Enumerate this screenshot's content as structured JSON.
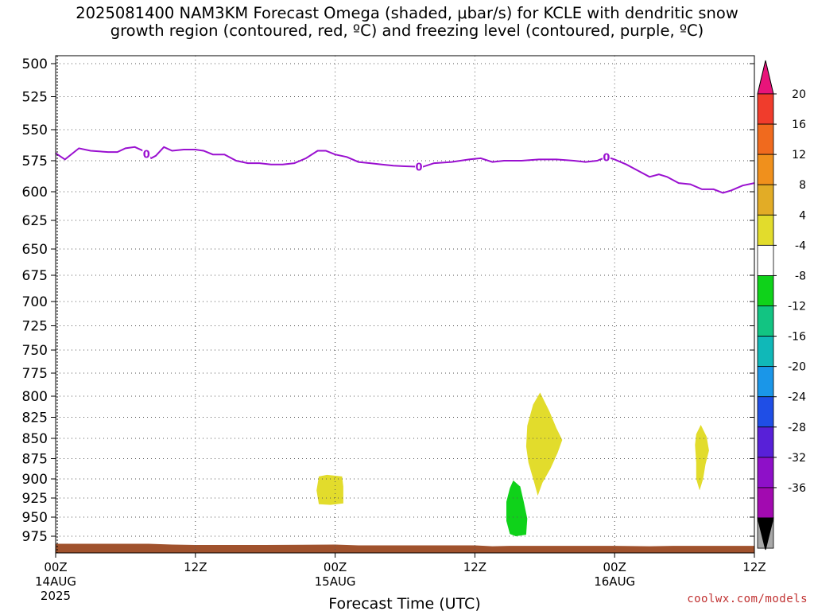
{
  "title": {
    "line1": "2025081400 NAM3KM Forecast Omega (shaded, μbar/s) for KCLE with dendritic snow",
    "line2": "growth region (contoured, red, ºC) and freezing level (contoured, purple, ºC)"
  },
  "credit": "coolwx.com/models",
  "chart_data": {
    "type": "contour",
    "xlabel": "Forecast Time (UTC)",
    "ylabel": "",
    "x_unit": "hours from 2025-08-14 00Z",
    "xlim": [
      0,
      60
    ],
    "ylim_hPa": [
      490,
      995
    ],
    "y_reversed": true,
    "grid": true,
    "x_ticks": [
      {
        "hour": 0,
        "label": "00Z",
        "date": "14AUG",
        "year": "2025"
      },
      {
        "hour": 12,
        "label": "12Z"
      },
      {
        "hour": 24,
        "label": "00Z",
        "date": "15AUG"
      },
      {
        "hour": 36,
        "label": "12Z"
      },
      {
        "hour": 48,
        "label": "00Z",
        "date": "16AUG"
      },
      {
        "hour": 60,
        "label": "12Z"
      }
    ],
    "y_ticks": [
      500,
      525,
      550,
      575,
      600,
      625,
      650,
      675,
      700,
      725,
      750,
      775,
      800,
      825,
      850,
      875,
      900,
      925,
      950,
      975
    ],
    "freezing_level": {
      "name": "0 ºC",
      "color": "#9a10d0",
      "label_text": "0",
      "label_hours": [
        7.8,
        31.2,
        47.3
      ],
      "points": [
        [
          0,
          569
        ],
        [
          0.8,
          574
        ],
        [
          2,
          565
        ],
        [
          3,
          567
        ],
        [
          4.5,
          568
        ],
        [
          5.3,
          568
        ],
        [
          6,
          565
        ],
        [
          6.8,
          564
        ],
        [
          7.5,
          567
        ],
        [
          8.2,
          573
        ],
        [
          8.6,
          571
        ],
        [
          9.3,
          564
        ],
        [
          10,
          567
        ],
        [
          11,
          566
        ],
        [
          12,
          566
        ],
        [
          12.7,
          567
        ],
        [
          13.5,
          570
        ],
        [
          14.5,
          570
        ],
        [
          15.5,
          575
        ],
        [
          16.5,
          577
        ],
        [
          17.5,
          577
        ],
        [
          18.5,
          578
        ],
        [
          19.5,
          578
        ],
        [
          20.5,
          577
        ],
        [
          21.5,
          573
        ],
        [
          22.5,
          567
        ],
        [
          23.2,
          567
        ],
        [
          24,
          570
        ],
        [
          25,
          572
        ],
        [
          26,
          576
        ],
        [
          27,
          577
        ],
        [
          28,
          578
        ],
        [
          29,
          579
        ],
        [
          30,
          579.5
        ],
        [
          31.5,
          580
        ],
        [
          32.5,
          577
        ],
        [
          34,
          576
        ],
        [
          35.5,
          574
        ],
        [
          36.5,
          573
        ],
        [
          37.5,
          576
        ],
        [
          38.5,
          575
        ],
        [
          40,
          575
        ],
        [
          41.5,
          574
        ],
        [
          43,
          574
        ],
        [
          44.5,
          575
        ],
        [
          45.5,
          576
        ],
        [
          46.5,
          575
        ],
        [
          47.3,
          572
        ],
        [
          48,
          574
        ],
        [
          49,
          578
        ],
        [
          50,
          583
        ],
        [
          51,
          588
        ],
        [
          51.8,
          586
        ],
        [
          52.5,
          588
        ],
        [
          53.5,
          593
        ],
        [
          54.5,
          594
        ],
        [
          55.5,
          598
        ],
        [
          56.5,
          598
        ],
        [
          57.3,
          601
        ],
        [
          58,
          599
        ],
        [
          59,
          595
        ],
        [
          60,
          593
        ]
      ]
    },
    "dendritic_growth_region": [],
    "omega_areas": [
      {
        "name": "omega 4 to 8 μbar/s",
        "color": "#e2dc2c",
        "outline": [
          [
            22.6,
            897
          ],
          [
            23.3,
            895
          ],
          [
            24.6,
            897
          ],
          [
            24.7,
            910
          ],
          [
            24.7,
            932
          ],
          [
            23.6,
            934
          ],
          [
            22.6,
            933
          ],
          [
            22.4,
            915
          ]
        ]
      },
      {
        "name": "omega 4 to 8 μbar/s",
        "color": "#e2dc2c",
        "outline": [
          [
            41.6,
            796
          ],
          [
            42.4,
            818
          ],
          [
            43,
            838
          ],
          [
            43.5,
            852
          ],
          [
            43.1,
            868
          ],
          [
            42.5,
            887
          ],
          [
            41.8,
            905
          ],
          [
            41.4,
            922
          ],
          [
            41.1,
            905
          ],
          [
            40.6,
            880
          ],
          [
            40.4,
            860
          ],
          [
            40.5,
            835
          ],
          [
            41,
            810
          ]
        ]
      },
      {
        "name": "omega -8 to -4 μbar/s",
        "color": "#0fd21a",
        "outline": [
          [
            39.3,
            902
          ],
          [
            39.9,
            910
          ],
          [
            40.2,
            930
          ],
          [
            40.5,
            952
          ],
          [
            40.4,
            973
          ],
          [
            39.5,
            975
          ],
          [
            39,
            972
          ],
          [
            38.7,
            955
          ],
          [
            38.7,
            930
          ],
          [
            39,
            912
          ]
        ]
      },
      {
        "name": "omega 4 to 8 μbar/s",
        "color": "#e2dc2c",
        "outline": [
          [
            55.4,
            834
          ],
          [
            55.9,
            848
          ],
          [
            56.1,
            865
          ],
          [
            55.8,
            882
          ],
          [
            55.6,
            900
          ],
          [
            55.3,
            915
          ],
          [
            55,
            900
          ],
          [
            55,
            880
          ],
          [
            54.9,
            858
          ],
          [
            55,
            845
          ]
        ]
      }
    ],
    "surface": {
      "name": "terrain",
      "color": "#a0522d",
      "points": [
        [
          0,
          984
        ],
        [
          4,
          984
        ],
        [
          8,
          984
        ],
        [
          10,
          985
        ],
        [
          12,
          985.5
        ],
        [
          18,
          985.5
        ],
        [
          24,
          985
        ],
        [
          26,
          986
        ],
        [
          30,
          986
        ],
        [
          36,
          986
        ],
        [
          37.5,
          987
        ],
        [
          39,
          986.5
        ],
        [
          44,
          986.5
        ],
        [
          48,
          986.5
        ],
        [
          51,
          987
        ],
        [
          53,
          986.5
        ],
        [
          57,
          986.5
        ],
        [
          60,
          986.5
        ]
      ]
    },
    "colorbar": {
      "label_unit": "μbar/s",
      "levels": [
        20,
        16,
        12,
        8,
        4,
        -4,
        -8,
        -12,
        -16,
        -20,
        -24,
        -28,
        -32,
        -36
      ],
      "colors": [
        "#e8147a",
        "#f03c2c",
        "#f06a1e",
        "#f0901c",
        "#e2ac26",
        "#e2dc2c",
        "#ffffff",
        "#0fd21a",
        "#12c482",
        "#10b8b8",
        "#1a96e8",
        "#1f4ee6",
        "#5820d8",
        "#8e10c8",
        "#a20ab0",
        "#a8a8a8",
        "#000000"
      ]
    }
  }
}
